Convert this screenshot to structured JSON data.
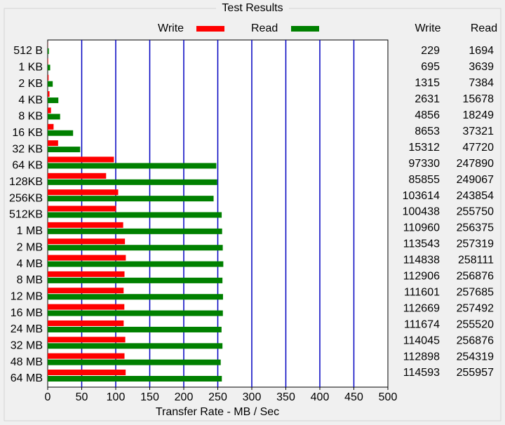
{
  "chart_data": {
    "type": "bar",
    "title": "Test Results",
    "categories": [
      "512 B",
      "1 KB",
      "2 KB",
      "4 KB",
      "8 KB",
      "16 KB",
      "32 KB",
      "64 KB",
      "128KB",
      "256KB",
      "512KB",
      "1 MB",
      "2 MB",
      "4 MB",
      "8 MB",
      "12 MB",
      "16 MB",
      "24 MB",
      "32 MB",
      "48 MB",
      "64 MB"
    ],
    "series": [
      {
        "name": "Write",
        "color": "#ff0000",
        "values": [
          0.229,
          0.695,
          1.315,
          2.631,
          4.856,
          8.653,
          15.312,
          97.33,
          85.855,
          103.614,
          100.438,
          110.96,
          113.543,
          114.838,
          112.906,
          111.601,
          112.669,
          111.674,
          114.045,
          112.898,
          114.593
        ]
      },
      {
        "name": "Read",
        "color": "#008000",
        "values": [
          1.694,
          3.639,
          7.384,
          15.678,
          18.249,
          37.321,
          47.72,
          247.89,
          249.067,
          243.854,
          255.75,
          256.375,
          257.319,
          258.111,
          256.876,
          257.685,
          257.492,
          255.52,
          256.876,
          254.319,
          255.957
        ]
      }
    ],
    "xlim": [
      0,
      500
    ],
    "xticks": [
      0,
      50,
      100,
      150,
      200,
      250,
      300,
      350,
      400,
      450,
      500
    ],
    "xlabel": "Transfer Rate - MB / Sec",
    "grid": true,
    "grid_color": "#0000c0",
    "table": {
      "columns": [
        "Write",
        "Read"
      ],
      "rows": [
        [
          229,
          1694
        ],
        [
          695,
          3639
        ],
        [
          1315,
          7384
        ],
        [
          2631,
          15678
        ],
        [
          4856,
          18249
        ],
        [
          8653,
          37321
        ],
        [
          15312,
          47720
        ],
        [
          97330,
          247890
        ],
        [
          85855,
          249067
        ],
        [
          103614,
          243854
        ],
        [
          100438,
          255750
        ],
        [
          110960,
          256375
        ],
        [
          113543,
          257319
        ],
        [
          114838,
          258111
        ],
        [
          112906,
          256876
        ],
        [
          111601,
          257685
        ],
        [
          112669,
          257492
        ],
        [
          111674,
          255520
        ],
        [
          114045,
          256876
        ],
        [
          112898,
          254319
        ],
        [
          114593,
          255957
        ]
      ]
    }
  }
}
